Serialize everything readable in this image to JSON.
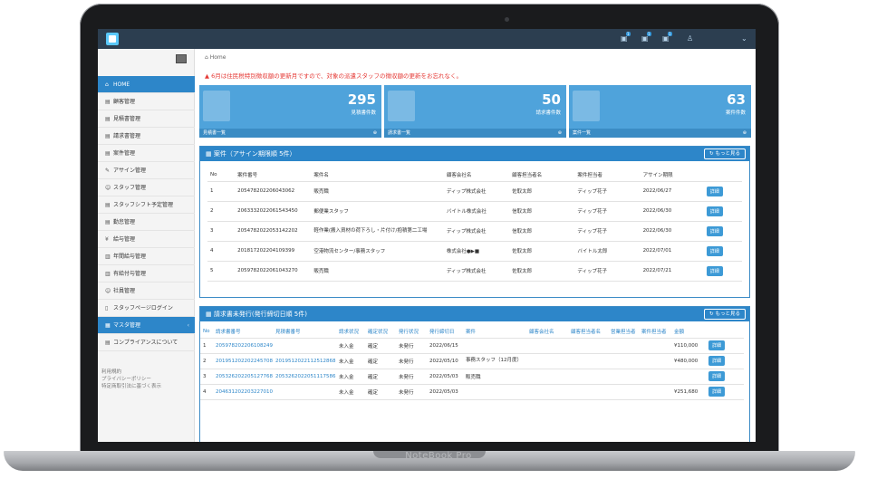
{
  "device": {
    "brand_label": "NoteBook Pro"
  },
  "colors": {
    "primary": "#2d86c9",
    "stat_tile": "#4fa3db",
    "alert": "#e53935",
    "topbar": "#2c3e50"
  },
  "breadcrumb": "Home",
  "alert_text": "6月は住民税特別徴収額の更新月ですので、対象の派遣スタッフの徴収額の更新をお忘れなく。",
  "sidebar": {
    "items": [
      {
        "icon": "⌂",
        "label": "HOME"
      },
      {
        "icon": "▤",
        "label": "顧客管理"
      },
      {
        "icon": "▤",
        "label": "見積書管理"
      },
      {
        "icon": "▤",
        "label": "請求書管理"
      },
      {
        "icon": "▤",
        "label": "案件管理"
      },
      {
        "icon": "✎",
        "label": "アサイン管理"
      },
      {
        "icon": "☺",
        "label": "スタッフ管理"
      },
      {
        "icon": "▤",
        "label": "スタッフシフト予定管理"
      },
      {
        "icon": "▤",
        "label": "勤怠管理"
      },
      {
        "icon": "¥",
        "label": "給与管理"
      },
      {
        "icon": "▥",
        "label": "年間給与管理"
      },
      {
        "icon": "▥",
        "label": "有給付与管理"
      },
      {
        "icon": "☺",
        "label": "社員管理"
      },
      {
        "icon": "▯",
        "label": "スタッフページログイン"
      },
      {
        "icon": "▦",
        "label": "マスタ管理"
      },
      {
        "icon": "▤",
        "label": "コンプライアンスについて"
      }
    ],
    "links": [
      "利用規約",
      "プライバシーポリシー",
      "特定商取引法に基づく表示"
    ]
  },
  "stats": [
    {
      "value": "295",
      "label": "見積書件数",
      "footer": "見積書一覧"
    },
    {
      "value": "50",
      "label": "請求書件数",
      "footer": "請求書一覧"
    },
    {
      "value": "63",
      "label": "案件件数",
      "footer": "案件一覧"
    }
  ],
  "assign_panel": {
    "title": "案件（アサイン期限順 5件）",
    "more": "もっと見る",
    "headers": [
      "No",
      "案件番号",
      "案件名",
      "顧客会社名",
      "顧客担当者名",
      "案件担当者",
      "アサイン期限",
      ""
    ],
    "rows": [
      [
        "1",
        "20547820220604306​2",
        "販売職",
        "ディップ株式会社",
        "佐取太郎",
        "ディップ花子",
        "2022/06/27",
        "詳細"
      ],
      [
        "2",
        "20633320220615434​50",
        "郵便業スタッフ",
        "バイトル株式会社",
        "信取太郎",
        "ディップ花子",
        "2022/06/30",
        "詳細"
      ],
      [
        "3",
        "20547820220531422​02",
        "軽作業(搬入資材の荷下ろし・片付け/抱積第二工場",
        "ディップ株式会社",
        "信取太郎",
        "ディップ花子",
        "2022/06/30",
        "詳細"
      ],
      [
        "4",
        "20181720220410939​9",
        "空港物流センター/事務スタッフ",
        "株式会社●▶■",
        "佐取太郎",
        "バイトル太郎",
        "2022/07/01",
        "詳細"
      ],
      [
        "5",
        "20597820220610432​70",
        "販売職",
        "ディップ株式会社",
        "佐取太郎",
        "ディップ花子",
        "2022/07/21",
        "詳細"
      ]
    ]
  },
  "invoice_panel": {
    "title": "請求書未発行(発行締切日順 5件)",
    "more": "もっと見る",
    "headers": [
      "No",
      "請求書番号",
      "見積書番号",
      "請求状況",
      "確定状況",
      "発行状況",
      "発行締切日",
      "案件",
      "顧客会社名",
      "顧客担当者名",
      "営業担当者",
      "案件担当者",
      "金額",
      ""
    ],
    "rows": [
      [
        "1",
        "20597820220610824​9",
        "",
        "未入金",
        "確定",
        "未発行",
        "2022/06/15",
        "",
        "",
        "",
        "",
        "",
        "¥110,000",
        "詳細"
      ],
      [
        "2",
        "20195120220224570​8",
        "201951202211251286​81",
        "未入金",
        "確定",
        "未発行",
        "2022/05/10",
        "事務スタッフ（12月度）",
        "",
        "",
        "",
        "",
        "¥480,000",
        "詳細"
      ],
      [
        "3",
        "20532620220512776​8",
        "205326202205111758​61",
        "未入金",
        "確定",
        "未発行",
        "2022/05/03",
        "販売職",
        "",
        "",
        "",
        "",
        "",
        "詳細"
      ],
      [
        "4",
        "20463120220322701​0",
        "",
        "未入金",
        "確定",
        "未発行",
        "2022/05/03",
        "",
        "",
        "",
        "",
        "",
        "¥251,680",
        "詳細"
      ]
    ]
  }
}
